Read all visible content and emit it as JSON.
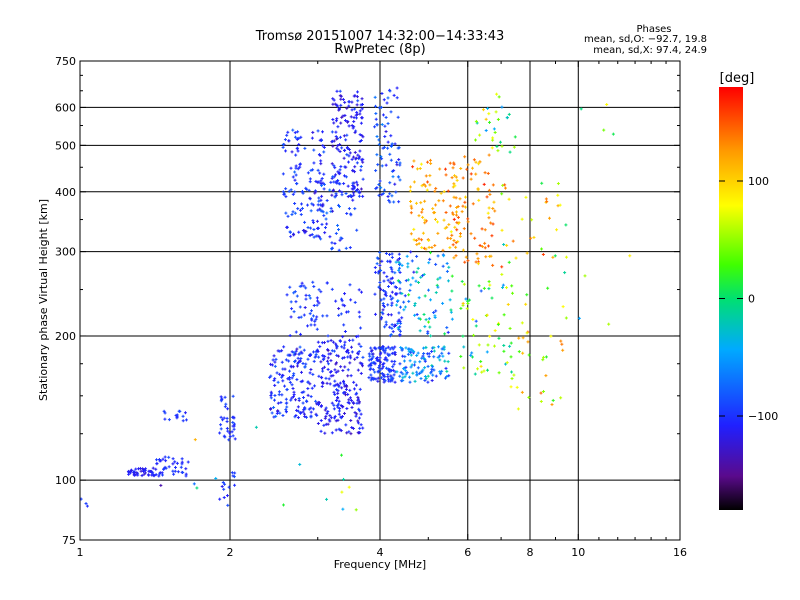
{
  "chart_data": {
    "type": "scatter",
    "title": "Tromsø 20151007 14:32:00−14:33:43",
    "subtitle": "RwPretec (8p)",
    "xlabel": "Frequency [MHz]",
    "ylabel": "Stationary phase Virtual Height [km]",
    "x_scale": "log",
    "y_scale": "log",
    "xlim": [
      1,
      16
    ],
    "ylim": [
      75,
      750
    ],
    "x_ticks": [
      1,
      2,
      4,
      6,
      8,
      10,
      16
    ],
    "x_tick_labels": [
      "1",
      "2",
      "4",
      "6",
      "8",
      "10",
      "16"
    ],
    "y_ticks": [
      75,
      100,
      200,
      300,
      400,
      500,
      600,
      750
    ],
    "y_tick_labels": [
      "75",
      "100",
      "200",
      "300",
      "400",
      "500",
      "600",
      "750"
    ],
    "grid_x": [
      2,
      4,
      6,
      8,
      10
    ],
    "grid_y": [
      100,
      200,
      300,
      400,
      500,
      600
    ],
    "stats": {
      "title": "Phases",
      "o_line": "mean, sd,O: −92.7, 19.8",
      "x_line": "mean, sd,X:  97.4, 24.9"
    },
    "colorbar": {
      "label": "[deg]",
      "range": [
        -180,
        180
      ],
      "ticks": [
        100,
        0,
        -100
      ],
      "tick_labels": [
        "100",
        "0",
        "−100"
      ]
    },
    "clusters": [
      {
        "fmin": 1.0,
        "fmax": 1.05,
        "hmin": 88,
        "hmax": 92,
        "n": 3,
        "phase": -100,
        "spread": 20
      },
      {
        "fmin": 1.25,
        "fmax": 1.42,
        "hmin": 102,
        "hmax": 106,
        "n": 45,
        "phase": -110,
        "spread": 15
      },
      {
        "fmin": 1.42,
        "fmax": 1.65,
        "hmin": 102,
        "hmax": 112,
        "n": 40,
        "phase": -100,
        "spread": 15
      },
      {
        "fmin": 1.45,
        "fmax": 1.65,
        "hmin": 133,
        "hmax": 140,
        "n": 14,
        "phase": -100,
        "spread": 15
      },
      {
        "fmin": 1.9,
        "fmax": 2.05,
        "hmin": 88,
        "hmax": 106,
        "n": 14,
        "phase": -100,
        "spread": 20
      },
      {
        "fmin": 1.9,
        "fmax": 2.05,
        "hmin": 120,
        "hmax": 150,
        "n": 35,
        "phase": -100,
        "spread": 15
      },
      {
        "fmin": 2.4,
        "fmax": 3.0,
        "hmin": 135,
        "hmax": 190,
        "n": 170,
        "phase": -100,
        "spread": 30
      },
      {
        "fmin": 2.6,
        "fmax": 3.0,
        "hmin": 200,
        "hmax": 260,
        "n": 45,
        "phase": -95,
        "spread": 25
      },
      {
        "fmin": 2.55,
        "fmax": 3.1,
        "hmin": 320,
        "hmax": 540,
        "n": 140,
        "phase": -100,
        "spread": 30
      },
      {
        "fmin": 3.0,
        "fmax": 3.7,
        "hmin": 125,
        "hmax": 200,
        "n": 220,
        "phase": -110,
        "spread": 25
      },
      {
        "fmin": 3.0,
        "fmax": 3.7,
        "hmin": 200,
        "hmax": 260,
        "n": 30,
        "phase": -100,
        "spread": 25
      },
      {
        "fmin": 3.2,
        "fmax": 3.7,
        "hmin": 390,
        "hmax": 650,
        "n": 170,
        "phase": -110,
        "spread": 30
      },
      {
        "fmin": 3.0,
        "fmax": 3.6,
        "hmin": 300,
        "hmax": 440,
        "n": 60,
        "phase": -95,
        "spread": 35
      },
      {
        "fmin": 3.8,
        "fmax": 4.3,
        "hmin": 160,
        "hmax": 190,
        "n": 120,
        "phase": -100,
        "spread": 25
      },
      {
        "fmin": 3.9,
        "fmax": 4.4,
        "hmin": 200,
        "hmax": 300,
        "n": 100,
        "phase": -100,
        "spread": 30
      },
      {
        "fmin": 3.9,
        "fmax": 4.4,
        "hmin": 380,
        "hmax": 660,
        "n": 80,
        "phase": -90,
        "spread": 35
      },
      {
        "fmin": 4.3,
        "fmax": 5.5,
        "hmin": 160,
        "hmax": 190,
        "n": 110,
        "phase": -60,
        "spread": 60
      },
      {
        "fmin": 4.3,
        "fmax": 5.6,
        "hmin": 200,
        "hmax": 300,
        "n": 90,
        "phase": -40,
        "spread": 80
      },
      {
        "fmin": 4.6,
        "fmax": 5.8,
        "hmin": 300,
        "hmax": 470,
        "n": 100,
        "phase": 120,
        "spread": 45
      },
      {
        "fmin": 5.6,
        "fmax": 6.8,
        "hmin": 280,
        "hmax": 480,
        "n": 80,
        "phase": 130,
        "spread": 45
      },
      {
        "fmin": 5.8,
        "fmax": 7.4,
        "hmin": 160,
        "hmax": 260,
        "n": 60,
        "phase": 20,
        "spread": 110
      },
      {
        "fmin": 6.2,
        "fmax": 7.5,
        "hmin": 480,
        "hmax": 640,
        "n": 30,
        "phase": 30,
        "spread": 110
      },
      {
        "fmin": 7.0,
        "fmax": 9.5,
        "hmin": 140,
        "hmax": 420,
        "n": 70,
        "phase": 80,
        "spread": 110
      },
      {
        "fmin": 8.5,
        "fmax": 13.0,
        "hmin": 180,
        "hmax": 620,
        "n": 12,
        "phase": 40,
        "spread": 120
      },
      {
        "fmin": 1.3,
        "fmax": 3.6,
        "hmin": 85,
        "hmax": 130,
        "n": 15,
        "phase": 0,
        "spread": 150
      }
    ]
  }
}
